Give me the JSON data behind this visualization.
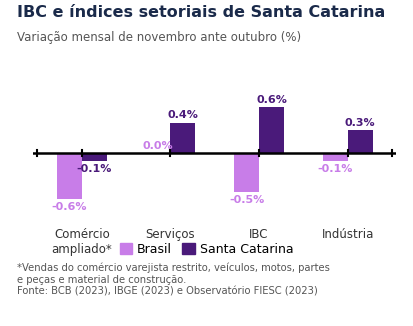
{
  "title": "IBC e índices setoriais de Santa Catarina",
  "subtitle": "Variação mensal de novembro ante outubro (%)",
  "categories": [
    "Comércio\nampliado*",
    "Serviços",
    "IBC",
    "Indústria"
  ],
  "brasil_values": [
    -0.6,
    0.0,
    -0.5,
    -0.1
  ],
  "sc_values": [
    -0.1,
    0.4,
    0.6,
    0.3
  ],
  "brasil_color": "#c87de8",
  "sc_color": "#4a1a7a",
  "bar_width": 0.28,
  "ylim": [
    -0.85,
    0.85
  ],
  "footnote": "*Vendas do comércio varejista restrito, veículos, motos, partes\ne peças e material de construção.\nFonte: BCB (2023), IBGE (2023) e Observatório FIESC (2023)",
  "legend_brasil": "Brasil",
  "legend_sc": "Santa Catarina",
  "title_fontsize": 11.5,
  "subtitle_fontsize": 8.5,
  "label_fontsize": 8.5,
  "footnote_fontsize": 7.2,
  "value_fontsize": 8.0,
  "title_color": "#1a2a4a",
  "subtitle_color": "#555555",
  "footnote_color": "#555555",
  "background_color": "#ffffff"
}
